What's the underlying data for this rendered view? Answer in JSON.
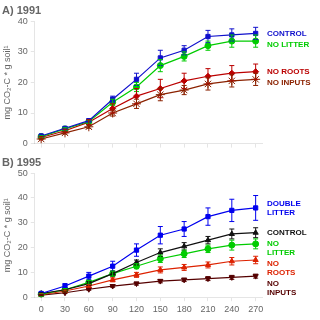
{
  "chart_data": [
    {
      "type": "line",
      "title": "A) 1991",
      "ylabel": "mg CO₂-C * g soil¹",
      "x": [
        0,
        30,
        60,
        90,
        120,
        150,
        180,
        210,
        240,
        270
      ],
      "xlim": [
        -8,
        278
      ],
      "xticks": [
        0,
        30,
        60,
        90,
        120,
        150,
        180,
        210,
        240,
        270
      ],
      "ylim": [
        0,
        40
      ],
      "yticks": [
        0,
        10,
        20,
        30,
        40
      ],
      "grid": false,
      "tick_labels": "y",
      "series": [
        {
          "name": "CONTROL",
          "color": "#1010CC",
          "marker": "square",
          "values": [
            2.5,
            5.0,
            7.5,
            14.5,
            21.0,
            28.0,
            30.5,
            35.0,
            35.5,
            36.0
          ],
          "errors": [
            0.3,
            0.4,
            0.5,
            1.0,
            2.0,
            2.5,
            1.5,
            2.0,
            2.0,
            2.0
          ]
        },
        {
          "name": "NO LITTER",
          "color": "#00CC00",
          "marker": "circle",
          "values": [
            2.3,
            4.8,
            7.2,
            13.5,
            18.5,
            25.5,
            28.5,
            32.0,
            33.5,
            33.5
          ],
          "errors": [
            0.3,
            0.4,
            0.5,
            1.0,
            1.5,
            2.0,
            1.5,
            1.5,
            2.0,
            2.0
          ]
        },
        {
          "name": "NO ROOTS",
          "color": "#BB0000",
          "marker": "diamond",
          "values": [
            2.0,
            4.2,
            7.0,
            11.5,
            15.5,
            18.0,
            20.5,
            22.0,
            23.0,
            23.5
          ],
          "errors": [
            0.3,
            0.5,
            0.8,
            1.5,
            2.5,
            3.0,
            2.5,
            2.5,
            2.5,
            2.5
          ]
        },
        {
          "name": "NO INPUTS",
          "color": "#8B2200",
          "marker": "star",
          "values": [
            1.5,
            3.5,
            5.5,
            10.0,
            13.0,
            16.0,
            17.5,
            19.5,
            20.5,
            21.0
          ],
          "errors": [
            0.2,
            0.4,
            0.5,
            1.0,
            1.5,
            2.0,
            1.5,
            2.0,
            2.0,
            2.0
          ]
        }
      ]
    },
    {
      "type": "line",
      "title": "B) 1995",
      "ylabel": "mg CO₂-C * g soil¹",
      "x": [
        0,
        30,
        60,
        90,
        120,
        150,
        180,
        210,
        240,
        270
      ],
      "xlim": [
        -8,
        278
      ],
      "xticks": [
        0,
        30,
        60,
        90,
        120,
        150,
        180,
        210,
        240,
        270
      ],
      "ylim": [
        0,
        50
      ],
      "yticks": [
        0,
        10,
        20,
        30,
        40,
        50
      ],
      "grid": false,
      "series": [
        {
          "name": "DOUBLE\nLITTER",
          "color": "#0000EE",
          "marker": "square",
          "values": [
            1.5,
            4.5,
            8.5,
            12.5,
            19.0,
            25.0,
            27.5,
            32.5,
            35.0,
            36.0
          ],
          "errors": [
            0.5,
            1.0,
            1.5,
            2.0,
            2.5,
            3.5,
            3.0,
            3.5,
            4.5,
            5.0
          ]
        },
        {
          "name": "CONTROL",
          "color": "#111111",
          "marker": "triangle",
          "values": [
            1.5,
            3.0,
            5.5,
            9.5,
            14.0,
            18.0,
            20.5,
            23.0,
            25.5,
            26.0
          ],
          "errors": [
            0.3,
            0.5,
            0.8,
            1.0,
            1.0,
            1.5,
            1.5,
            1.5,
            2.0,
            2.0
          ]
        },
        {
          "name": "NO\nLITTER",
          "color": "#00CC00",
          "marker": "circle",
          "values": [
            1.2,
            3.0,
            6.0,
            9.5,
            12.5,
            15.5,
            17.5,
            19.5,
            21.0,
            21.5
          ],
          "errors": [
            0.3,
            0.5,
            0.8,
            1.0,
            1.0,
            1.5,
            1.5,
            1.5,
            2.0,
            2.0
          ]
        },
        {
          "name": "NO\nROOTS",
          "color": "#DD2200",
          "marker": "triangle",
          "values": [
            1.0,
            2.5,
            4.5,
            7.0,
            9.0,
            11.0,
            12.0,
            13.0,
            14.5,
            15.0
          ],
          "errors": [
            0.3,
            0.4,
            0.5,
            0.8,
            1.0,
            1.2,
            1.2,
            1.2,
            1.5,
            1.5
          ]
        },
        {
          "name": "NO\nINPUTS",
          "color": "#550000",
          "marker": "triangle_down",
          "values": [
            0.8,
            1.8,
            3.2,
            4.5,
            5.5,
            6.5,
            7.0,
            7.5,
            8.0,
            8.5
          ],
          "errors": [
            0.2,
            0.3,
            0.4,
            0.5,
            0.6,
            0.7,
            0.7,
            0.8,
            0.8,
            0.8
          ]
        }
      ]
    }
  ]
}
